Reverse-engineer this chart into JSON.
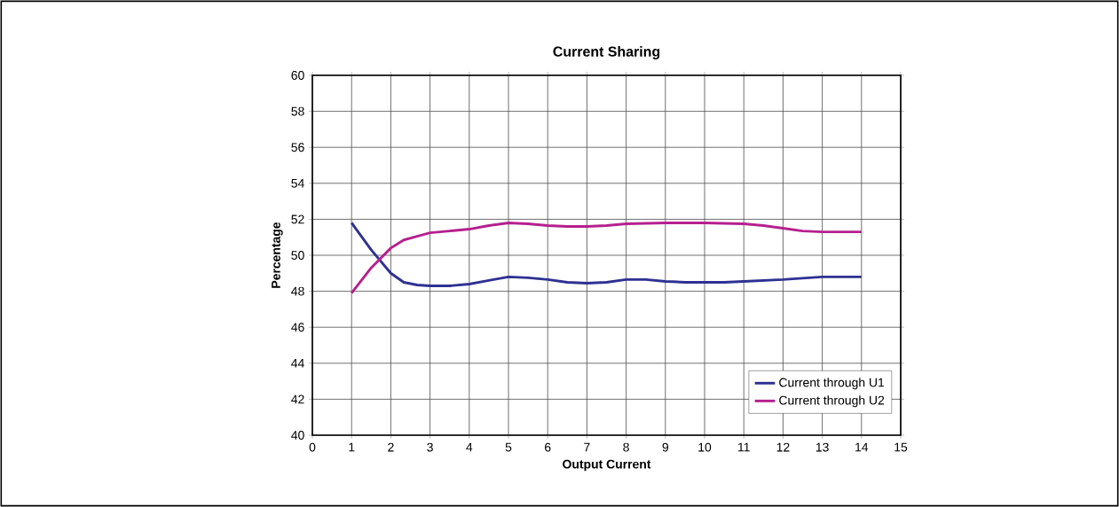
{
  "chart_data": {
    "type": "line",
    "title": "Current Sharing",
    "xlabel": "Output Current",
    "ylabel": "Percentage",
    "xlim": [
      0,
      15
    ],
    "xticks": [
      0,
      1,
      2,
      3,
      4,
      5,
      6,
      7,
      8,
      9,
      10,
      11,
      12,
      13,
      14,
      15
    ],
    "ylim": [
      40,
      60
    ],
    "yticks": [
      40,
      42,
      44,
      46,
      48,
      50,
      52,
      54,
      56,
      58,
      60
    ],
    "grid": true,
    "legend": "bottom right",
    "marker": "none",
    "line_style": "solid",
    "series": [
      {
        "name": "Current through U1",
        "color": "#2e3192",
        "x": [
          1,
          1.5,
          2,
          2.33,
          2.67,
          3,
          3.5,
          4,
          4.5,
          5,
          5.5,
          6,
          6.5,
          7,
          7.5,
          8,
          8.5,
          9,
          9.5,
          10,
          10.5,
          11,
          12,
          13,
          14
        ],
        "values": [
          51.8,
          50.3,
          49.0,
          48.5,
          48.35,
          48.3,
          48.3,
          48.4,
          48.6,
          48.8,
          48.75,
          48.65,
          48.5,
          48.45,
          48.5,
          48.65,
          48.65,
          48.55,
          48.5,
          48.5,
          48.5,
          48.55,
          48.65,
          48.8,
          48.8
        ]
      },
      {
        "name": "Current through U2",
        "color": "#b5208e",
        "x": [
          1,
          1.5,
          2,
          2.33,
          2.67,
          3,
          3.5,
          4,
          4.5,
          5,
          5.5,
          6,
          6.5,
          7,
          7.5,
          8,
          9,
          10,
          11,
          11.5,
          12,
          12.5,
          13,
          14
        ],
        "values": [
          47.9,
          49.3,
          50.4,
          50.85,
          51.05,
          51.25,
          51.35,
          51.45,
          51.65,
          51.8,
          51.75,
          51.65,
          51.6,
          51.6,
          51.65,
          51.75,
          51.8,
          51.8,
          51.75,
          51.65,
          51.5,
          51.35,
          51.3,
          51.3
        ]
      }
    ]
  }
}
